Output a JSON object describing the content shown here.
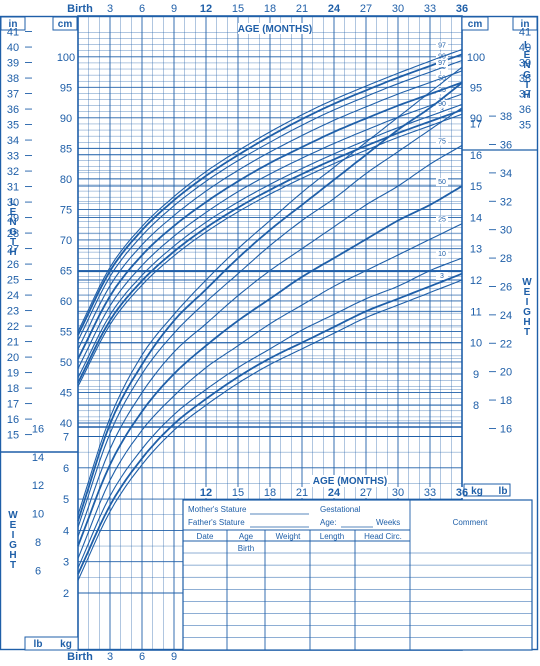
{
  "colors": {
    "ink": "#1f5fa8",
    "paper": "#ffffff"
  },
  "side_labels": {
    "left_top": [
      "L",
      "E",
      "N",
      "G",
      "T",
      "H"
    ],
    "right_top": [
      "L",
      "E",
      "N",
      "G",
      "T",
      "H"
    ],
    "right_mid": [
      "W",
      "E",
      "I",
      "G",
      "H",
      "T"
    ],
    "left_bottom": [
      "W",
      "E",
      "I",
      "G",
      "H",
      "T"
    ]
  },
  "top_axis": {
    "ticks": [
      {
        "label": "Birth",
        "bold": true
      },
      {
        "label": "3",
        "bold": false
      },
      {
        "label": "6",
        "bold": false
      },
      {
        "label": "9",
        "bold": false
      },
      {
        "label": "12",
        "bold": true
      },
      {
        "label": "15",
        "bold": false
      },
      {
        "label": "18",
        "bold": false
      },
      {
        "label": "21",
        "bold": false
      },
      {
        "label": "24",
        "bold": true
      },
      {
        "label": "27",
        "bold": false
      },
      {
        "label": "30",
        "bold": false
      },
      {
        "label": "33",
        "bold": false
      },
      {
        "label": "36",
        "bold": true
      }
    ],
    "unit_in": "in",
    "unit_cm": "cm",
    "title": "AGE (MONTHS)"
  },
  "mid_axis": {
    "title": "AGE (MONTHS)",
    "ticks": [
      "12",
      "15",
      "18",
      "21",
      "24",
      "27",
      "30",
      "33",
      "36"
    ],
    "unit_kg": "kg",
    "unit_lb": "lb"
  },
  "bottom_axis": {
    "ticks": [
      "Birth",
      "3",
      "6",
      "9"
    ],
    "unit_lb": "lb",
    "unit_kg": "kg"
  },
  "length_in_left": [
    "41",
    "40",
    "39",
    "38",
    "37",
    "36",
    "35",
    "34",
    "33",
    "32",
    "31",
    "30",
    "29",
    "28",
    "27",
    "26",
    "25",
    "24",
    "23",
    "22",
    "21",
    "20",
    "19",
    "18",
    "17",
    "16",
    "15"
  ],
  "length_cm_left": [
    "100",
    "95",
    "90",
    "85",
    "80",
    "75",
    "70",
    "65",
    "60",
    "55",
    "50",
    "45",
    "40"
  ],
  "length_cm_right": [
    "100",
    "95",
    "90"
  ],
  "length_in_right": [
    "41",
    "40",
    "39",
    "38",
    "37",
    "36",
    "35"
  ],
  "weight_kg_right": [
    "17",
    "16",
    "15",
    "14",
    "13",
    "12",
    "11",
    "10",
    "9",
    "8"
  ],
  "weight_lb_right": [
    "38",
    "36",
    "34",
    "32",
    "30",
    "28",
    "26",
    "24",
    "22",
    "20",
    "18",
    "16"
  ],
  "weight_lb_left": [
    "16",
    "14",
    "12",
    "10",
    "8",
    "6"
  ],
  "weight_kg_left": [
    "7",
    "6",
    "5",
    "4",
    "3",
    "2"
  ],
  "form": {
    "mothers_stature": "Mother's Stature",
    "fathers_stature": "Father's Stature",
    "gestational": "Gestational",
    "age": "Age:",
    "weeks": "Weeks",
    "comment": "Comment",
    "columns": [
      "Date",
      "Age",
      "Weight",
      "Length",
      "Head Circ."
    ],
    "first_row_age": "Birth"
  },
  "chart_data": [
    {
      "type": "line",
      "xlabel": "AGE (MONTHS)",
      "ylabel": "LENGTH",
      "x": [
        0,
        3,
        6,
        9,
        12,
        15,
        18,
        21,
        24,
        27,
        30,
        33,
        36
      ],
      "y_unit": "cm",
      "series": [
        {
          "name": "3",
          "values": [
            46.0,
            56.1,
            62.6,
            67.4,
            71.3,
            74.6,
            77.5,
            80.1,
            82.5,
            84.7,
            86.8,
            88.7,
            90.6
          ]
        },
        {
          "name": "5",
          "values": [
            46.6,
            56.8,
            63.3,
            68.1,
            72.0,
            75.3,
            78.2,
            80.8,
            83.2,
            85.4,
            87.5,
            89.4,
            91.3
          ]
        },
        {
          "name": "10",
          "values": [
            47.4,
            57.7,
            64.2,
            69.0,
            72.9,
            76.2,
            79.1,
            81.7,
            84.1,
            86.3,
            88.4,
            90.3,
            92.2
          ]
        },
        {
          "name": "25",
          "values": [
            48.9,
            59.2,
            65.8,
            70.6,
            74.5,
            77.9,
            80.8,
            83.4,
            85.8,
            88.0,
            90.1,
            92.0,
            93.9
          ]
        },
        {
          "name": "50",
          "values": [
            50.5,
            60.8,
            67.5,
            72.3,
            76.2,
            79.6,
            82.6,
            85.2,
            87.7,
            89.9,
            92.0,
            93.9,
            95.8
          ]
        },
        {
          "name": "75",
          "values": [
            52.1,
            62.5,
            69.2,
            74.0,
            78.0,
            81.4,
            84.4,
            87.1,
            89.6,
            91.8,
            93.9,
            95.8,
            97.7
          ]
        },
        {
          "name": "90",
          "values": [
            53.5,
            64.0,
            70.7,
            75.6,
            79.6,
            83.0,
            86.0,
            88.8,
            91.3,
            93.5,
            95.6,
            97.5,
            99.4
          ]
        },
        {
          "name": "95",
          "values": [
            54.4,
            64.9,
            71.6,
            76.5,
            80.5,
            83.9,
            87.0,
            89.8,
            92.3,
            94.5,
            96.6,
            98.5,
            100.4
          ]
        },
        {
          "name": "97",
          "values": [
            55.0,
            65.5,
            72.2,
            77.1,
            81.2,
            84.6,
            87.7,
            90.5,
            93.0,
            95.2,
            97.3,
            99.3,
            101.2
          ]
        }
      ]
    },
    {
      "type": "line",
      "xlabel": "AGE (MONTHS)",
      "ylabel": "WEIGHT",
      "x": [
        0,
        3,
        6,
        9,
        12,
        15,
        18,
        21,
        24,
        27,
        30,
        33,
        36
      ],
      "y_unit": "kg",
      "series": [
        {
          "name": "3",
          "values": [
            2.4,
            4.6,
            6.1,
            7.2,
            8.0,
            8.7,
            9.3,
            9.8,
            10.3,
            10.8,
            11.2,
            11.6,
            12.0
          ]
        },
        {
          "name": "5",
          "values": [
            2.6,
            4.8,
            6.3,
            7.4,
            8.2,
            8.9,
            9.5,
            10.0,
            10.5,
            11.0,
            11.4,
            11.8,
            12.2
          ]
        },
        {
          "name": "10",
          "values": [
            2.8,
            5.1,
            6.6,
            7.7,
            8.5,
            9.2,
            9.8,
            10.4,
            10.9,
            11.4,
            11.8,
            12.3,
            12.7
          ]
        },
        {
          "name": "25",
          "values": [
            3.1,
            5.6,
            7.2,
            8.3,
            9.2,
            9.9,
            10.6,
            11.2,
            11.8,
            12.3,
            12.8,
            13.3,
            13.8
          ]
        },
        {
          "name": "50",
          "values": [
            3.5,
            6.1,
            7.8,
            9.0,
            9.9,
            10.7,
            11.4,
            12.1,
            12.7,
            13.3,
            13.9,
            14.4,
            15.0
          ]
        },
        {
          "name": "75",
          "values": [
            3.8,
            6.6,
            8.4,
            9.7,
            10.6,
            11.5,
            12.3,
            13.0,
            13.7,
            14.4,
            15.0,
            15.7,
            16.3
          ]
        },
        {
          "name": "90",
          "values": [
            4.1,
            7.1,
            9.0,
            10.3,
            11.3,
            12.2,
            13.1,
            13.9,
            14.6,
            15.4,
            16.1,
            16.8,
            17.5
          ]
        },
        {
          "name": "95",
          "values": [
            4.3,
            7.4,
            9.3,
            10.7,
            11.7,
            12.7,
            13.6,
            14.4,
            15.2,
            16.0,
            16.8,
            17.5,
            18.3
          ]
        },
        {
          "name": "97",
          "values": [
            4.5,
            7.6,
            9.6,
            10.9,
            12.0,
            13.0,
            13.9,
            14.8,
            15.6,
            16.4,
            17.2,
            18.0,
            18.8
          ]
        }
      ]
    }
  ]
}
